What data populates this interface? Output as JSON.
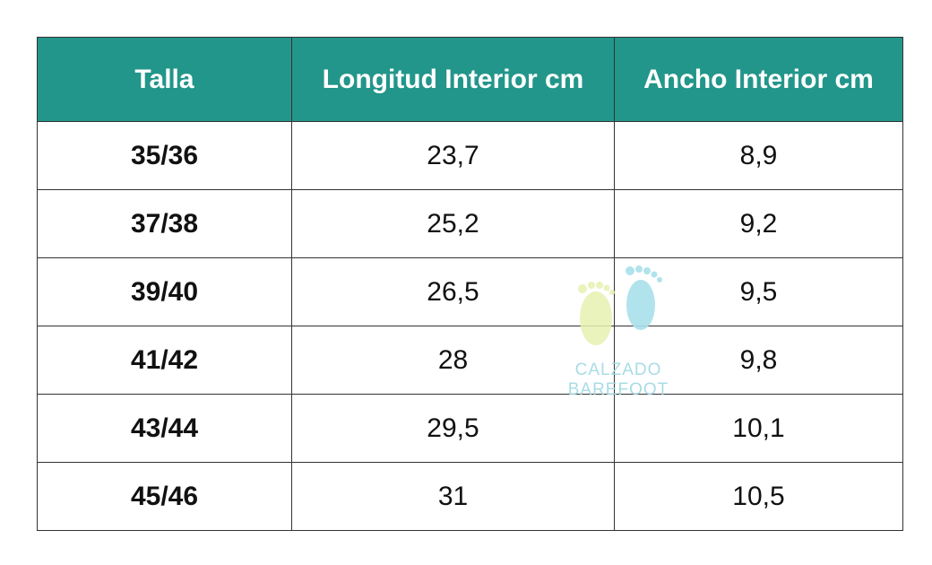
{
  "table": {
    "header": [
      "Talla",
      "Longitud Interior cm",
      "Ancho Interior cm"
    ],
    "rows": [
      [
        "35/36",
        "23,7",
        "8,9"
      ],
      [
        "37/38",
        "25,2",
        "9,2"
      ],
      [
        "39/40",
        "26,5",
        "9,5"
      ],
      [
        "41/42",
        "28",
        "9,8"
      ],
      [
        "43/44",
        "29,5",
        "10,1"
      ],
      [
        "45/46",
        "31",
        "10,5"
      ]
    ]
  },
  "watermark": {
    "text": "CALZADO BAREFOOT"
  }
}
